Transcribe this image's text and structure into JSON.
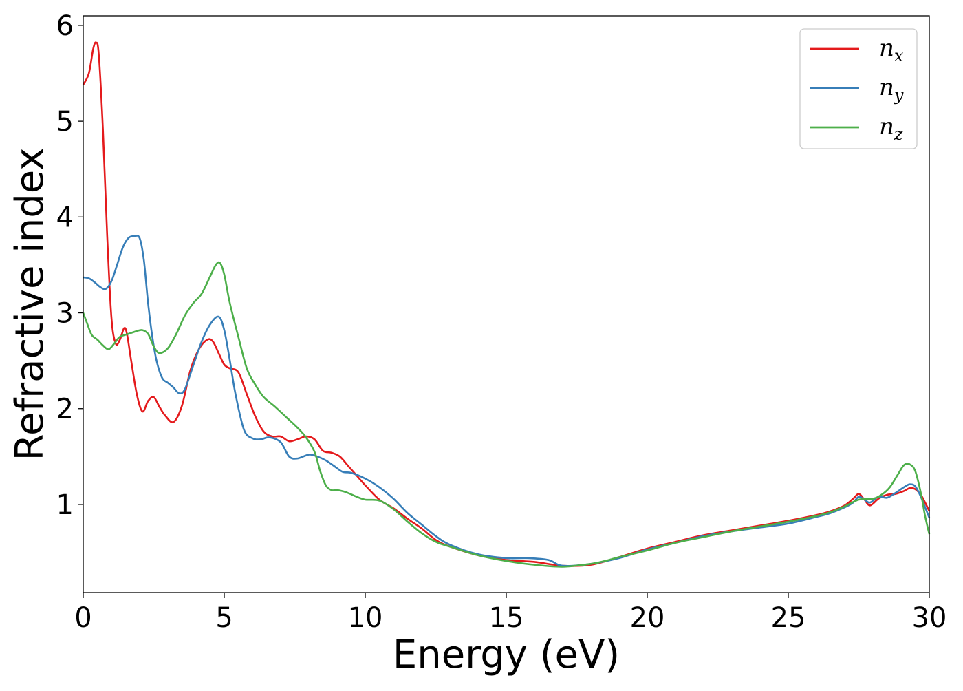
{
  "chart_data": {
    "type": "line",
    "xlabel": "Energy (eV)",
    "ylabel": "Refractive index",
    "xlim": [
      0,
      30
    ],
    "ylim": [
      0.08,
      6.1
    ],
    "xticks": [
      0,
      5,
      10,
      15,
      20,
      25,
      30
    ],
    "xtick_labels": [
      "0",
      "5",
      "10",
      "15",
      "20",
      "25",
      "30"
    ],
    "yticks": [
      1,
      2,
      3,
      4,
      5,
      6
    ],
    "ytick_labels": [
      "1",
      "2",
      "3",
      "4",
      "5",
      "6"
    ],
    "grid": false,
    "legend_position": "top-right",
    "series": [
      {
        "name": "n",
        "subscript": "x",
        "color": "#e41a1c",
        "x": [
          0,
          0.2,
          0.35,
          0.45,
          0.55,
          0.7,
          0.85,
          1.0,
          1.15,
          1.3,
          1.45,
          1.55,
          1.7,
          1.9,
          2.1,
          2.3,
          2.5,
          2.7,
          2.9,
          3.2,
          3.5,
          3.8,
          4.1,
          4.4,
          4.6,
          4.8,
          5.0,
          5.2,
          5.5,
          5.8,
          6.1,
          6.4,
          6.7,
          7.0,
          7.3,
          7.6,
          7.9,
          8.2,
          8.5,
          8.8,
          9.1,
          9.4,
          9.7,
          10.0,
          10.5,
          11.0,
          11.5,
          12.0,
          12.5,
          13.0,
          14.0,
          15.0,
          16.0,
          17.0,
          18.0,
          19.0,
          20.0,
          21.0,
          22.0,
          23.0,
          24.0,
          25.0,
          26.0,
          26.5,
          27.0,
          27.3,
          27.5,
          27.7,
          27.9,
          28.2,
          28.5,
          28.8,
          29.1,
          29.3,
          29.5,
          29.7,
          29.85,
          30.0
        ],
        "values": [
          5.38,
          5.5,
          5.75,
          5.82,
          5.7,
          4.9,
          3.8,
          2.95,
          2.68,
          2.72,
          2.84,
          2.78,
          2.5,
          2.15,
          1.97,
          2.08,
          2.12,
          2.02,
          1.93,
          1.86,
          2.03,
          2.4,
          2.62,
          2.72,
          2.7,
          2.58,
          2.46,
          2.42,
          2.38,
          2.15,
          1.92,
          1.76,
          1.71,
          1.71,
          1.66,
          1.68,
          1.71,
          1.68,
          1.56,
          1.54,
          1.5,
          1.4,
          1.3,
          1.2,
          1.05,
          0.96,
          0.85,
          0.75,
          0.63,
          0.56,
          0.47,
          0.42,
          0.4,
          0.36,
          0.37,
          0.45,
          0.54,
          0.61,
          0.68,
          0.73,
          0.78,
          0.83,
          0.89,
          0.93,
          0.99,
          1.06,
          1.11,
          1.05,
          0.99,
          1.06,
          1.1,
          1.11,
          1.14,
          1.17,
          1.16,
          1.1,
          1.02,
          0.93
        ]
      },
      {
        "name": "n",
        "subscript": "y",
        "color": "#377eb8",
        "x": [
          0,
          0.2,
          0.4,
          0.6,
          0.8,
          1.0,
          1.2,
          1.4,
          1.6,
          1.8,
          2.0,
          2.15,
          2.3,
          2.45,
          2.6,
          2.8,
          3.0,
          3.2,
          3.4,
          3.6,
          3.9,
          4.2,
          4.5,
          4.8,
          5.0,
          5.2,
          5.4,
          5.7,
          6.0,
          6.3,
          6.6,
          7.0,
          7.3,
          7.6,
          8.0,
          8.3,
          8.6,
          8.9,
          9.2,
          9.5,
          10.0,
          10.5,
          11.0,
          11.5,
          12.0,
          12.5,
          13.0,
          14.0,
          15.0,
          15.8,
          16.5,
          17.0,
          18.0,
          19.0,
          20.0,
          21.0,
          22.0,
          23.0,
          24.0,
          25.0,
          26.0,
          26.5,
          27.0,
          27.3,
          27.5,
          27.7,
          27.9,
          28.2,
          28.5,
          28.8,
          29.1,
          29.3,
          29.5,
          29.7,
          30.0
        ],
        "values": [
          3.37,
          3.36,
          3.32,
          3.27,
          3.25,
          3.33,
          3.5,
          3.68,
          3.78,
          3.8,
          3.78,
          3.55,
          3.1,
          2.75,
          2.5,
          2.32,
          2.27,
          2.22,
          2.16,
          2.2,
          2.45,
          2.7,
          2.88,
          2.96,
          2.82,
          2.5,
          2.15,
          1.78,
          1.69,
          1.68,
          1.7,
          1.65,
          1.5,
          1.48,
          1.52,
          1.5,
          1.46,
          1.4,
          1.34,
          1.33,
          1.27,
          1.18,
          1.06,
          0.91,
          0.79,
          0.67,
          0.58,
          0.48,
          0.44,
          0.44,
          0.42,
          0.36,
          0.38,
          0.44,
          0.53,
          0.6,
          0.67,
          0.72,
          0.76,
          0.8,
          0.87,
          0.91,
          0.97,
          1.02,
          1.08,
          1.05,
          1.02,
          1.08,
          1.07,
          1.12,
          1.18,
          1.21,
          1.19,
          1.08,
          0.86
        ]
      },
      {
        "name": "n",
        "subscript": "z",
        "color": "#4daf4a",
        "x": [
          0,
          0.15,
          0.3,
          0.5,
          0.7,
          0.9,
          1.1,
          1.3,
          1.6,
          1.9,
          2.1,
          2.3,
          2.5,
          2.7,
          3.0,
          3.3,
          3.6,
          3.9,
          4.2,
          4.5,
          4.7,
          4.85,
          5.0,
          5.2,
          5.5,
          5.8,
          6.1,
          6.4,
          6.8,
          7.2,
          7.6,
          7.9,
          8.2,
          8.4,
          8.6,
          8.8,
          9.0,
          9.3,
          9.7,
          10.0,
          10.5,
          11.0,
          11.5,
          12.0,
          12.5,
          13.0,
          14.0,
          15.0,
          16.0,
          17.0,
          18.0,
          18.5,
          19.0,
          20.0,
          21.0,
          22.0,
          23.0,
          24.0,
          25.0,
          26.0,
          26.5,
          27.0,
          27.5,
          28.0,
          28.3,
          28.6,
          28.9,
          29.1,
          29.3,
          29.5,
          29.7,
          29.85,
          30.0
        ],
        "values": [
          3.0,
          2.88,
          2.77,
          2.72,
          2.66,
          2.62,
          2.68,
          2.75,
          2.78,
          2.81,
          2.82,
          2.78,
          2.65,
          2.58,
          2.63,
          2.78,
          2.97,
          3.1,
          3.2,
          3.38,
          3.5,
          3.52,
          3.4,
          3.1,
          2.75,
          2.42,
          2.25,
          2.12,
          2.02,
          1.91,
          1.8,
          1.7,
          1.55,
          1.35,
          1.2,
          1.15,
          1.15,
          1.13,
          1.08,
          1.05,
          1.04,
          0.95,
          0.82,
          0.7,
          0.61,
          0.56,
          0.47,
          0.41,
          0.37,
          0.35,
          0.38,
          0.41,
          0.45,
          0.52,
          0.6,
          0.66,
          0.72,
          0.77,
          0.82,
          0.88,
          0.92,
          0.98,
          1.05,
          1.06,
          1.1,
          1.18,
          1.32,
          1.41,
          1.42,
          1.35,
          1.12,
          0.88,
          0.69
        ]
      }
    ]
  }
}
